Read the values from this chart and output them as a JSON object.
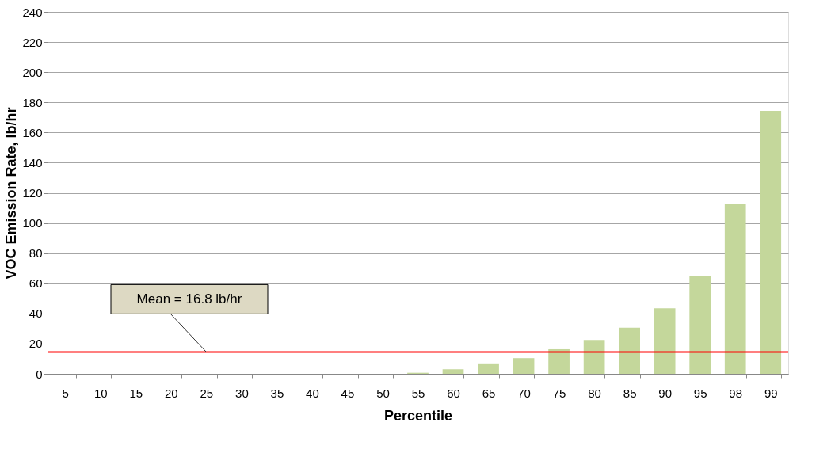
{
  "chart_data": {
    "type": "bar",
    "xlabel": "Percentile",
    "ylabel": "VOC Emission Rate, lb/hr",
    "categories": [
      "5",
      "10",
      "15",
      "20",
      "25",
      "30",
      "35",
      "40",
      "45",
      "50",
      "55",
      "60",
      "65",
      "70",
      "75",
      "80",
      "85",
      "90",
      "95",
      "98",
      "99"
    ],
    "values": [
      0,
      0,
      0,
      0,
      0,
      0,
      0,
      0,
      0,
      0,
      0.7,
      3.0,
      6.4,
      10.4,
      16.3,
      22.5,
      30.6,
      43.4,
      64.6,
      112.7,
      174.3
    ],
    "color": "#c4d79b",
    "ylim": [
      0,
      240
    ],
    "yticks": [
      0,
      20,
      40,
      60,
      80,
      100,
      120,
      140,
      160,
      180,
      200,
      220,
      240
    ],
    "grid": "y",
    "ref_lines": [
      {
        "axis": "y",
        "value": 14.5,
        "color": "#ff0000"
      }
    ],
    "annotations": [
      {
        "text": "Mean = 16.8 lb/hr",
        "x": "25",
        "y": 14.5
      }
    ]
  }
}
